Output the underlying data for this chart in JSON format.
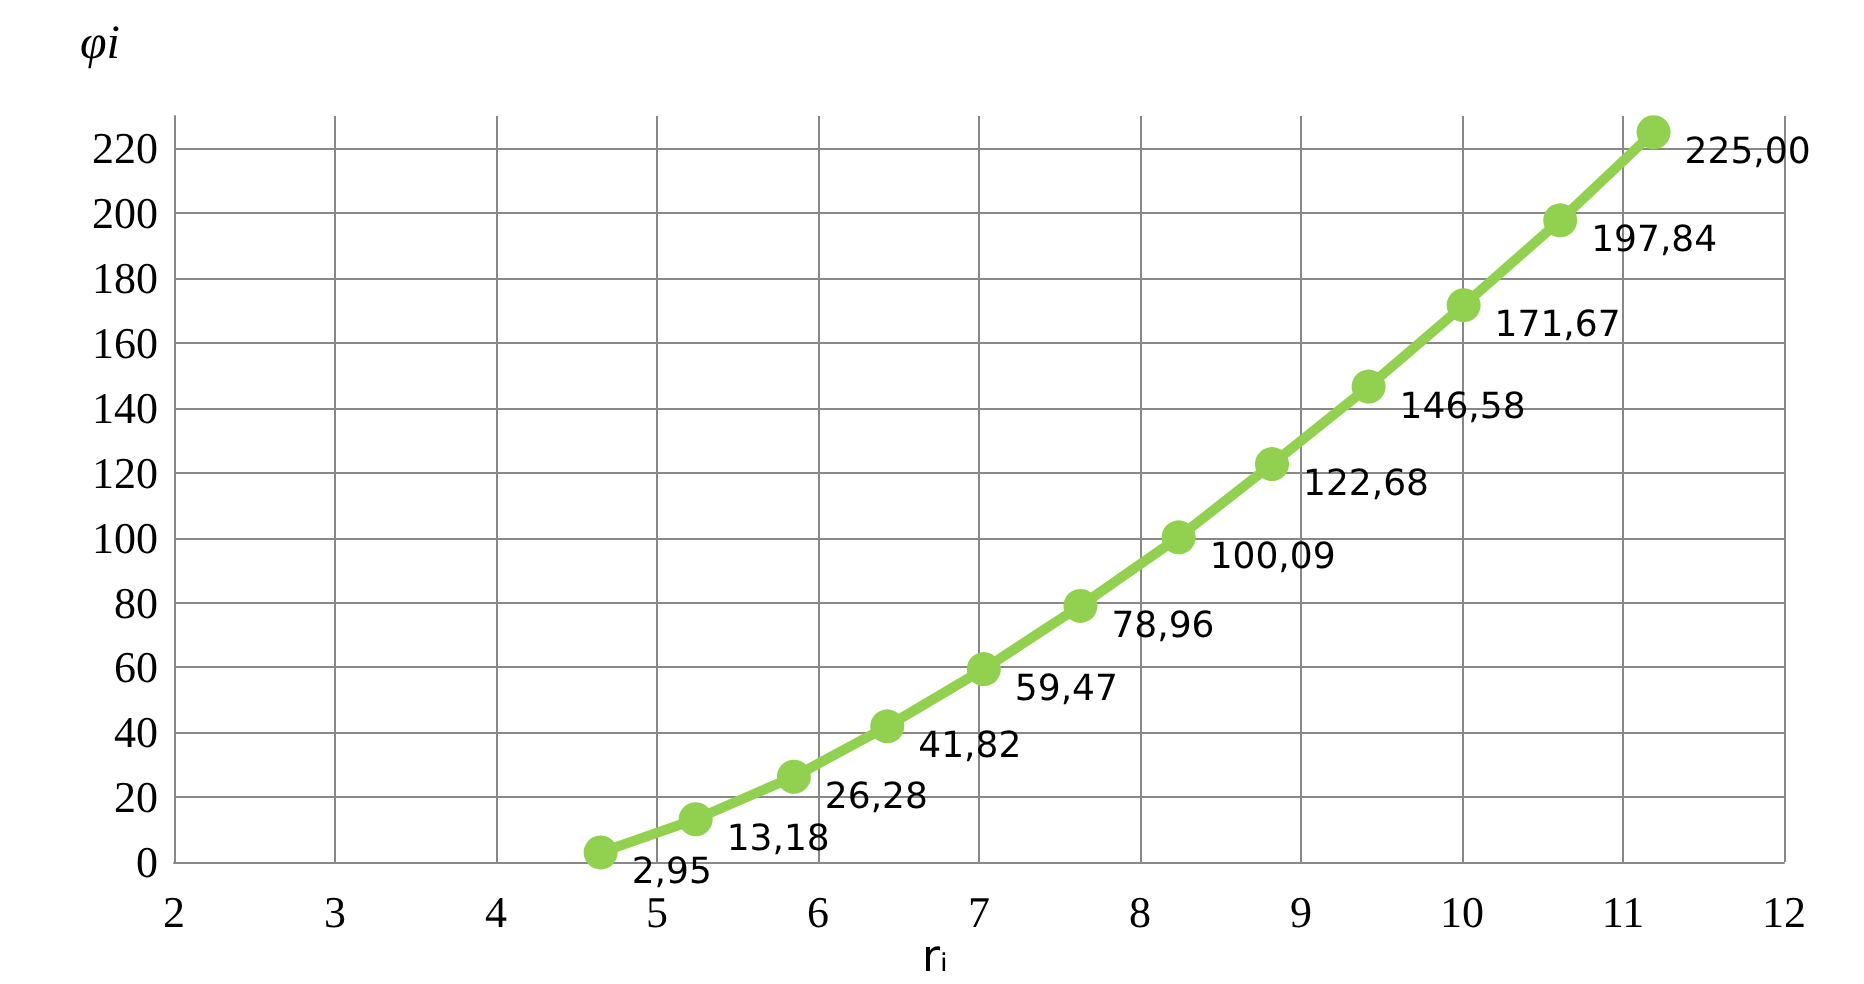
{
  "chart_data": {
    "type": "line",
    "ylabel": "φi",
    "xlabel": "rᵢ",
    "x": [
      4.65,
      5.24,
      5.85,
      6.43,
      7.03,
      7.63,
      8.24,
      8.82,
      9.42,
      10.01,
      10.61,
      11.19
    ],
    "series": [
      {
        "color": "#92d050",
        "values": [
          2.95,
          13.18,
          26.28,
          41.82,
          59.47,
          78.96,
          100.09,
          122.68,
          146.58,
          171.67,
          197.84,
          225.0
        ],
        "value_labels": [
          "2,95",
          "13,18",
          "26,28",
          "41,82",
          "59,47",
          "78,96",
          "100,09",
          "122,68",
          "146,58",
          "171,67",
          "197,84",
          "225,00"
        ]
      }
    ],
    "xlim": [
      2,
      12
    ],
    "xticks": [
      2,
      3,
      4,
      5,
      6,
      7,
      8,
      9,
      10,
      11,
      12
    ],
    "ylim": [
      0,
      230
    ],
    "yticks": [
      0,
      20,
      40,
      60,
      80,
      100,
      120,
      140,
      160,
      180,
      200,
      220
    ],
    "grid": true,
    "marker": "circle",
    "line_style": "solid"
  }
}
